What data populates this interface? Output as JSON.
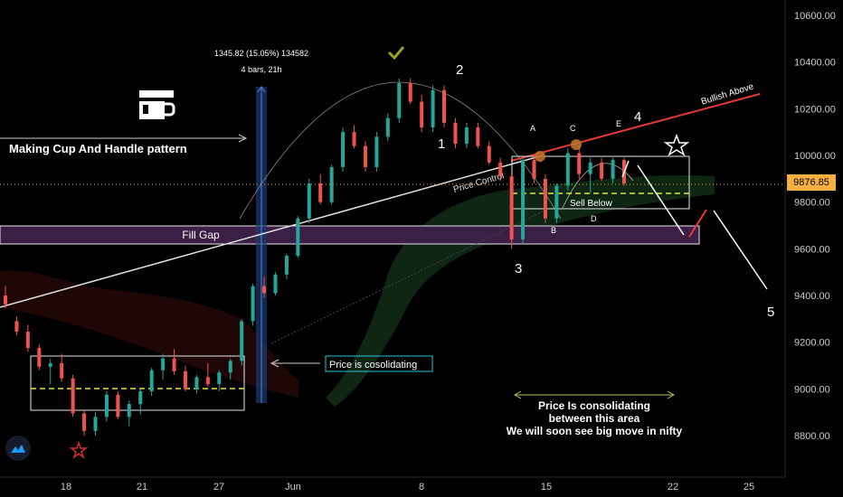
{
  "chart_data": {
    "type": "candlestick",
    "title": "",
    "y_ticks": [
      "10600.00",
      "10400.00",
      "10200.00",
      "10000.00",
      "9800.00",
      "9600.00",
      "9400.00",
      "9200.00",
      "9000.00",
      "8800.00"
    ],
    "x_ticks": [
      "18",
      "21",
      "27",
      "Jun",
      "8",
      "15",
      "22",
      "25"
    ],
    "current_price": "9876.85",
    "ylim": [
      8720,
      10680
    ],
    "price_anchor": "1345.82 (15.05%) 134582",
    "bars_anchor": "4 bars, 21h",
    "annotations": {
      "cup_handle": "Making Cup And Handle pattern",
      "fill_gap": "Fill Gap",
      "price_control": "Price Control",
      "sell_below": "Sell Below",
      "bullish_above": "Bullish Above",
      "consolidating_box": "Price is cosolidating",
      "consolidating_line1": "Price Is consolidating",
      "consolidating_line2": "between this area",
      "consolidating_line3": "We will soon see big move in nifty"
    },
    "wave_labels": [
      "1",
      "2",
      "3",
      "4",
      "5"
    ],
    "letter_labels": [
      "A",
      "B",
      "C",
      "D",
      "E"
    ],
    "colors": {
      "up": "#26a69a",
      "down": "#ef5350",
      "accent": "#f5b041",
      "trend": "#e53935"
    },
    "candles": [
      {
        "o": 9400,
        "h": 9440,
        "l": 9345,
        "c": 9362
      },
      {
        "o": 9290,
        "h": 9310,
        "l": 9230,
        "c": 9245
      },
      {
        "o": 9245,
        "h": 9275,
        "l": 9160,
        "c": 9175
      },
      {
        "o": 9175,
        "h": 9190,
        "l": 9080,
        "c": 9095
      },
      {
        "o": 9095,
        "h": 9130,
        "l": 9020,
        "c": 9110
      },
      {
        "o": 9110,
        "h": 9150,
        "l": 9030,
        "c": 9045
      },
      {
        "o": 9045,
        "h": 9060,
        "l": 8880,
        "c": 8895
      },
      {
        "o": 8895,
        "h": 8910,
        "l": 8800,
        "c": 8820
      },
      {
        "o": 8820,
        "h": 8900,
        "l": 8800,
        "c": 8880
      },
      {
        "o": 8880,
        "h": 8990,
        "l": 8860,
        "c": 8975
      },
      {
        "o": 8975,
        "h": 8990,
        "l": 8870,
        "c": 8880
      },
      {
        "o": 8880,
        "h": 8950,
        "l": 8840,
        "c": 8935
      },
      {
        "o": 8935,
        "h": 9000,
        "l": 8890,
        "c": 8990
      },
      {
        "o": 8990,
        "h": 9090,
        "l": 8970,
        "c": 9080
      },
      {
        "o": 9080,
        "h": 9150,
        "l": 9040,
        "c": 9130
      },
      {
        "o": 9130,
        "h": 9170,
        "l": 9060,
        "c": 9075
      },
      {
        "o": 9075,
        "h": 9100,
        "l": 8990,
        "c": 9000
      },
      {
        "o": 9000,
        "h": 9060,
        "l": 8980,
        "c": 9050
      },
      {
        "o": 9050,
        "h": 9110,
        "l": 9010,
        "c": 9020
      },
      {
        "o": 9020,
        "h": 9080,
        "l": 8990,
        "c": 9070
      },
      {
        "o": 9070,
        "h": 9130,
        "l": 9040,
        "c": 9120
      },
      {
        "o": 9120,
        "h": 9300,
        "l": 9100,
        "c": 9290
      },
      {
        "o": 9290,
        "h": 9450,
        "l": 9270,
        "c": 9440
      },
      {
        "o": 9440,
        "h": 9480,
        "l": 9390,
        "c": 9410
      },
      {
        "o": 9410,
        "h": 9500,
        "l": 9400,
        "c": 9490
      },
      {
        "o": 9490,
        "h": 9580,
        "l": 9470,
        "c": 9570
      },
      {
        "o": 9570,
        "h": 9740,
        "l": 9560,
        "c": 9730
      },
      {
        "o": 9730,
        "h": 9900,
        "l": 9710,
        "c": 9880
      },
      {
        "o": 9880,
        "h": 9920,
        "l": 9790,
        "c": 9800
      },
      {
        "o": 9800,
        "h": 9960,
        "l": 9790,
        "c": 9950
      },
      {
        "o": 9950,
        "h": 10120,
        "l": 9930,
        "c": 10100
      },
      {
        "o": 10100,
        "h": 10130,
        "l": 10030,
        "c": 10040
      },
      {
        "o": 10040,
        "h": 10060,
        "l": 9930,
        "c": 9950
      },
      {
        "o": 9950,
        "h": 10100,
        "l": 9930,
        "c": 10080
      },
      {
        "o": 10080,
        "h": 10180,
        "l": 10060,
        "c": 10160
      },
      {
        "o": 10160,
        "h": 10330,
        "l": 10140,
        "c": 10310
      },
      {
        "o": 10310,
        "h": 10330,
        "l": 10220,
        "c": 10230
      },
      {
        "o": 10230,
        "h": 10260,
        "l": 10100,
        "c": 10120
      },
      {
        "o": 10120,
        "h": 10300,
        "l": 10100,
        "c": 10280
      },
      {
        "o": 10280,
        "h": 10300,
        "l": 10120,
        "c": 10140
      },
      {
        "o": 10140,
        "h": 10160,
        "l": 10030,
        "c": 10050
      },
      {
        "o": 10050,
        "h": 10140,
        "l": 10030,
        "c": 10120
      },
      {
        "o": 10120,
        "h": 10140,
        "l": 10030,
        "c": 10040
      },
      {
        "o": 10040,
        "h": 10060,
        "l": 9960,
        "c": 9970
      },
      {
        "o": 9970,
        "h": 9990,
        "l": 9890,
        "c": 9910
      },
      {
        "o": 9910,
        "h": 9930,
        "l": 9600,
        "c": 9640
      },
      {
        "o": 9640,
        "h": 9990,
        "l": 9620,
        "c": 9980
      },
      {
        "o": 9980,
        "h": 10000,
        "l": 9880,
        "c": 9900
      },
      {
        "o": 9900,
        "h": 9920,
        "l": 9710,
        "c": 9730
      },
      {
        "o": 9730,
        "h": 9880,
        "l": 9710,
        "c": 9870
      },
      {
        "o": 9870,
        "h": 10030,
        "l": 9850,
        "c": 10010
      },
      {
        "o": 10010,
        "h": 10040,
        "l": 9900,
        "c": 9920
      },
      {
        "o": 9920,
        "h": 9990,
        "l": 9840,
        "c": 9970
      },
      {
        "o": 9970,
        "h": 9990,
        "l": 9890,
        "c": 9900
      },
      {
        "o": 9900,
        "h": 9990,
        "l": 9880,
        "c": 9980
      },
      {
        "o": 9980,
        "h": 9990,
        "l": 9870,
        "c": 9880
      }
    ]
  }
}
